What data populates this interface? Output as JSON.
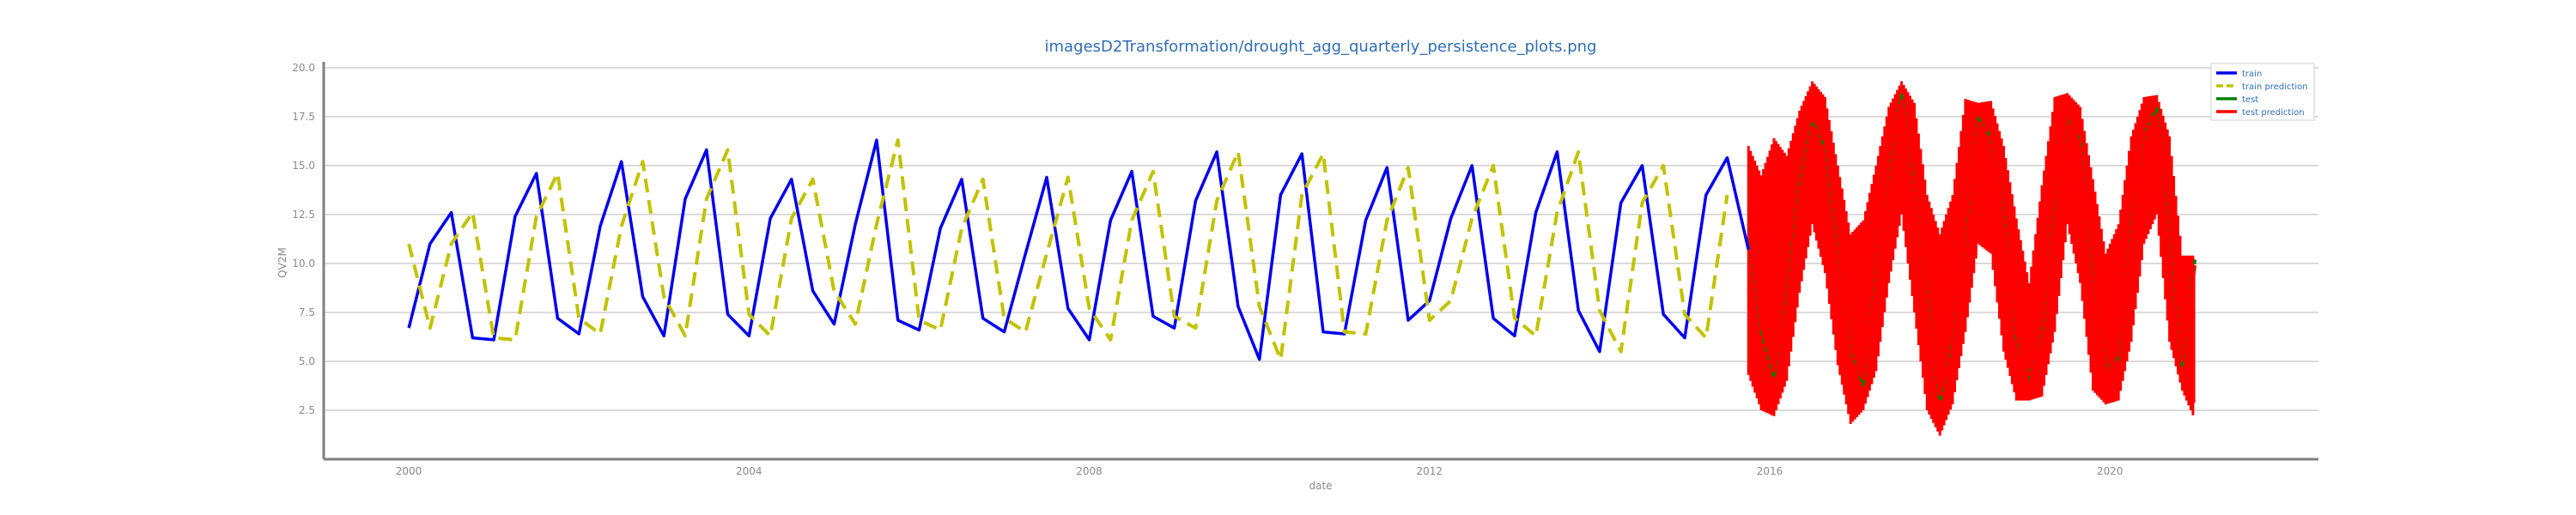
{
  "chart_data": {
    "type": "line",
    "title": "imagesD2Transformation/drought_agg_quarterly_persistence_plots.png",
    "xlabel": "date",
    "ylabel": "QV2M",
    "xlim": [
      1999.0,
      2022.45
    ],
    "ylim": [
      0,
      20.3
    ],
    "x_ticks": [
      2000,
      2004,
      2008,
      2012,
      2016,
      2020
    ],
    "y_ticks": [
      2.5,
      5.0,
      7.5,
      10.0,
      12.5,
      15.0,
      17.5,
      20.0
    ],
    "grid": "horizontal",
    "legend": "top-right",
    "colors": {
      "train": "#0000ee",
      "train_prediction": "#c2c200",
      "test": "#008000",
      "test_prediction": "#ff0000",
      "title": "#2f6eb5",
      "grid": "#cfcfcf",
      "axis": "#808080"
    },
    "series": [
      {
        "name": "train",
        "style": "solid",
        "x": [
          2000.0,
          2000.25,
          2000.5,
          2000.75,
          2001.0,
          2001.25,
          2001.5,
          2001.75,
          2002.0,
          2002.25,
          2002.5,
          2002.75,
          2003.0,
          2003.25,
          2003.5,
          2003.75,
          2004.0,
          2004.25,
          2004.5,
          2004.75,
          2005.0,
          2005.25,
          2005.5,
          2005.75,
          2006.0,
          2006.25,
          2006.5,
          2006.75,
          2007.0,
          2007.25,
          2007.5,
          2007.75,
          2008.0,
          2008.25,
          2008.5,
          2008.75,
          2009.0,
          2009.25,
          2009.5,
          2009.75,
          2010.0,
          2010.25,
          2010.5,
          2010.75,
          2011.0,
          2011.25,
          2011.5,
          2011.75,
          2012.0,
          2012.25,
          2012.5,
          2012.75,
          2013.0,
          2013.25,
          2013.5,
          2013.75,
          2014.0,
          2014.25,
          2014.5,
          2014.75,
          2015.0,
          2015.25,
          2015.5,
          2015.75
        ],
        "values": [
          6.7,
          11.0,
          12.6,
          6.2,
          6.1,
          12.4,
          14.6,
          7.2,
          6.4,
          11.9,
          15.2,
          8.3,
          6.3,
          13.3,
          15.8,
          7.4,
          6.3,
          12.3,
          14.3,
          8.6,
          6.9,
          12.0,
          16.3,
          7.1,
          6.6,
          11.8,
          14.3,
          7.2,
          6.5,
          10.5,
          14.4,
          7.7,
          6.1,
          12.2,
          14.7,
          7.3,
          6.7,
          13.2,
          15.7,
          7.8,
          5.1,
          13.5,
          15.6,
          6.5,
          6.4,
          12.2,
          14.9,
          7.1,
          8.1,
          12.3,
          15.0,
          7.2,
          6.3,
          12.6,
          15.7,
          7.6,
          5.5,
          13.1,
          15.0,
          7.4,
          6.2,
          13.5,
          15.4,
          10.7
        ]
      },
      {
        "name": "train prediction",
        "style": "dashed",
        "x": [
          2000.0,
          2000.25,
          2000.5,
          2000.75,
          2001.0,
          2001.25,
          2001.5,
          2001.75,
          2002.0,
          2002.25,
          2002.5,
          2002.75,
          2003.0,
          2003.25,
          2003.5,
          2003.75,
          2004.0,
          2004.25,
          2004.5,
          2004.75,
          2005.0,
          2005.25,
          2005.5,
          2005.75,
          2006.0,
          2006.25,
          2006.5,
          2006.75,
          2007.0,
          2007.25,
          2007.5,
          2007.75,
          2008.0,
          2008.25,
          2008.5,
          2008.75,
          2009.0,
          2009.25,
          2009.5,
          2009.75,
          2010.0,
          2010.25,
          2010.5,
          2010.75,
          2011.0,
          2011.25,
          2011.5,
          2011.75,
          2012.0,
          2012.25,
          2012.5,
          2012.75,
          2013.0,
          2013.25,
          2013.5,
          2013.75,
          2014.0,
          2014.25,
          2014.5,
          2014.75,
          2015.0,
          2015.25,
          2015.5
        ],
        "values": [
          11.0,
          6.7,
          11.0,
          12.6,
          6.2,
          6.1,
          12.4,
          14.6,
          7.2,
          6.4,
          11.9,
          15.2,
          8.3,
          6.3,
          13.3,
          15.8,
          7.4,
          6.3,
          12.3,
          14.3,
          8.6,
          6.9,
          12.0,
          16.3,
          7.1,
          6.6,
          11.8,
          14.3,
          7.2,
          6.5,
          10.5,
          14.4,
          7.7,
          6.1,
          12.2,
          14.7,
          7.3,
          6.7,
          13.2,
          15.7,
          7.8,
          5.1,
          13.5,
          15.6,
          6.5,
          6.4,
          12.2,
          14.9,
          7.1,
          8.1,
          12.3,
          15.0,
          7.2,
          6.3,
          12.6,
          15.7,
          7.6,
          5.5,
          13.1,
          15.0,
          7.4,
          6.2,
          13.5
        ]
      },
      {
        "name": "test",
        "style": "solid",
        "x": [
          2015.75,
          2015.9,
          2016.05,
          2016.2,
          2016.35,
          2016.5,
          2016.65,
          2016.8,
          2016.95,
          2017.1,
          2017.25,
          2017.4,
          2017.55,
          2017.7,
          2017.85,
          2018.0,
          2018.15,
          2018.3,
          2018.45,
          2018.6,
          2018.75,
          2018.9,
          2019.05,
          2019.2,
          2019.35,
          2019.5,
          2019.65,
          2019.8,
          2019.95,
          2020.1,
          2020.25,
          2020.4,
          2020.55,
          2020.7,
          2020.85,
          2021.0
        ],
        "values": [
          11.8,
          6.5,
          4.2,
          8.3,
          14.0,
          17.2,
          16.0,
          11.2,
          5.4,
          3.8,
          9.3,
          15.1,
          18.6,
          14.3,
          8.1,
          3.0,
          5.8,
          11.9,
          17.4,
          16.5,
          12.2,
          6.2,
          3.9,
          6.7,
          12.5,
          17.6,
          16.2,
          10.1,
          4.6,
          5.2,
          11.8,
          16.8,
          17.9,
          12.4,
          4.8,
          10.2
        ]
      },
      {
        "name": "test prediction",
        "style": "solid",
        "x": [
          2015.75,
          2015.9,
          2016.05,
          2016.2,
          2016.35,
          2016.5,
          2016.65,
          2016.8,
          2016.95,
          2017.1,
          2017.25,
          2017.4,
          2017.55,
          2017.7,
          2017.85,
          2018.0,
          2018.15,
          2018.3,
          2018.45,
          2018.6,
          2018.75,
          2018.9,
          2019.05,
          2019.2,
          2019.35,
          2019.5,
          2019.65,
          2019.8,
          2019.95,
          2020.1,
          2020.25,
          2020.4,
          2020.55,
          2020.7,
          2020.85,
          2021.0
        ],
        "values": [
          12.0,
          6.8,
          4.5,
          8.0,
          13.7,
          17.0,
          16.3,
          11.5,
          5.1,
          4.1,
          9.0,
          15.4,
          18.3,
          14.6,
          7.8,
          3.3,
          5.5,
          12.2,
          17.1,
          16.8,
          11.9,
          6.5,
          3.6,
          7.0,
          12.2,
          17.9,
          15.9,
          10.4,
          4.3,
          5.5,
          11.5,
          17.1,
          17.6,
          12.7,
          5.1,
          9.9
        ]
      }
    ],
    "test_prediction_envelope": {
      "x": [
        2015.75,
        2015.9,
        2016.05,
        2016.2,
        2016.35,
        2016.5,
        2016.65,
        2016.8,
        2016.95,
        2017.1,
        2017.25,
        2017.4,
        2017.55,
        2017.7,
        2017.85,
        2018.0,
        2018.15,
        2018.3,
        2018.45,
        2018.6,
        2018.75,
        2018.9,
        2019.05,
        2019.2,
        2019.35,
        2019.5,
        2019.65,
        2019.8,
        2019.95,
        2020.1,
        2020.25,
        2020.4,
        2020.55,
        2020.7,
        2020.85,
        2021.0
      ],
      "low": [
        4.3,
        2.5,
        2.2,
        4.0,
        8.5,
        12.0,
        9.5,
        4.8,
        1.8,
        2.5,
        4.5,
        9.0,
        12.5,
        7.5,
        2.5,
        1.2,
        2.8,
        6.5,
        11.0,
        10.5,
        5.5,
        3.0,
        3.0,
        3.2,
        6.5,
        12.0,
        9.0,
        3.5,
        2.8,
        3.0,
        6.0,
        11.0,
        12.5,
        6.0,
        3.5,
        2.0
      ],
      "high": [
        16.0,
        14.5,
        16.4,
        15.5,
        17.8,
        19.3,
        18.5,
        15.0,
        11.5,
        12.2,
        15.0,
        18.0,
        19.3,
        18.2,
        13.5,
        11.5,
        13.5,
        18.4,
        18.2,
        18.3,
        16.0,
        12.3,
        9.0,
        14.0,
        18.5,
        18.7,
        18.0,
        14.3,
        10.5,
        12.0,
        16.5,
        18.5,
        18.6,
        16.5,
        10.4,
        10.4
      ]
    }
  }
}
